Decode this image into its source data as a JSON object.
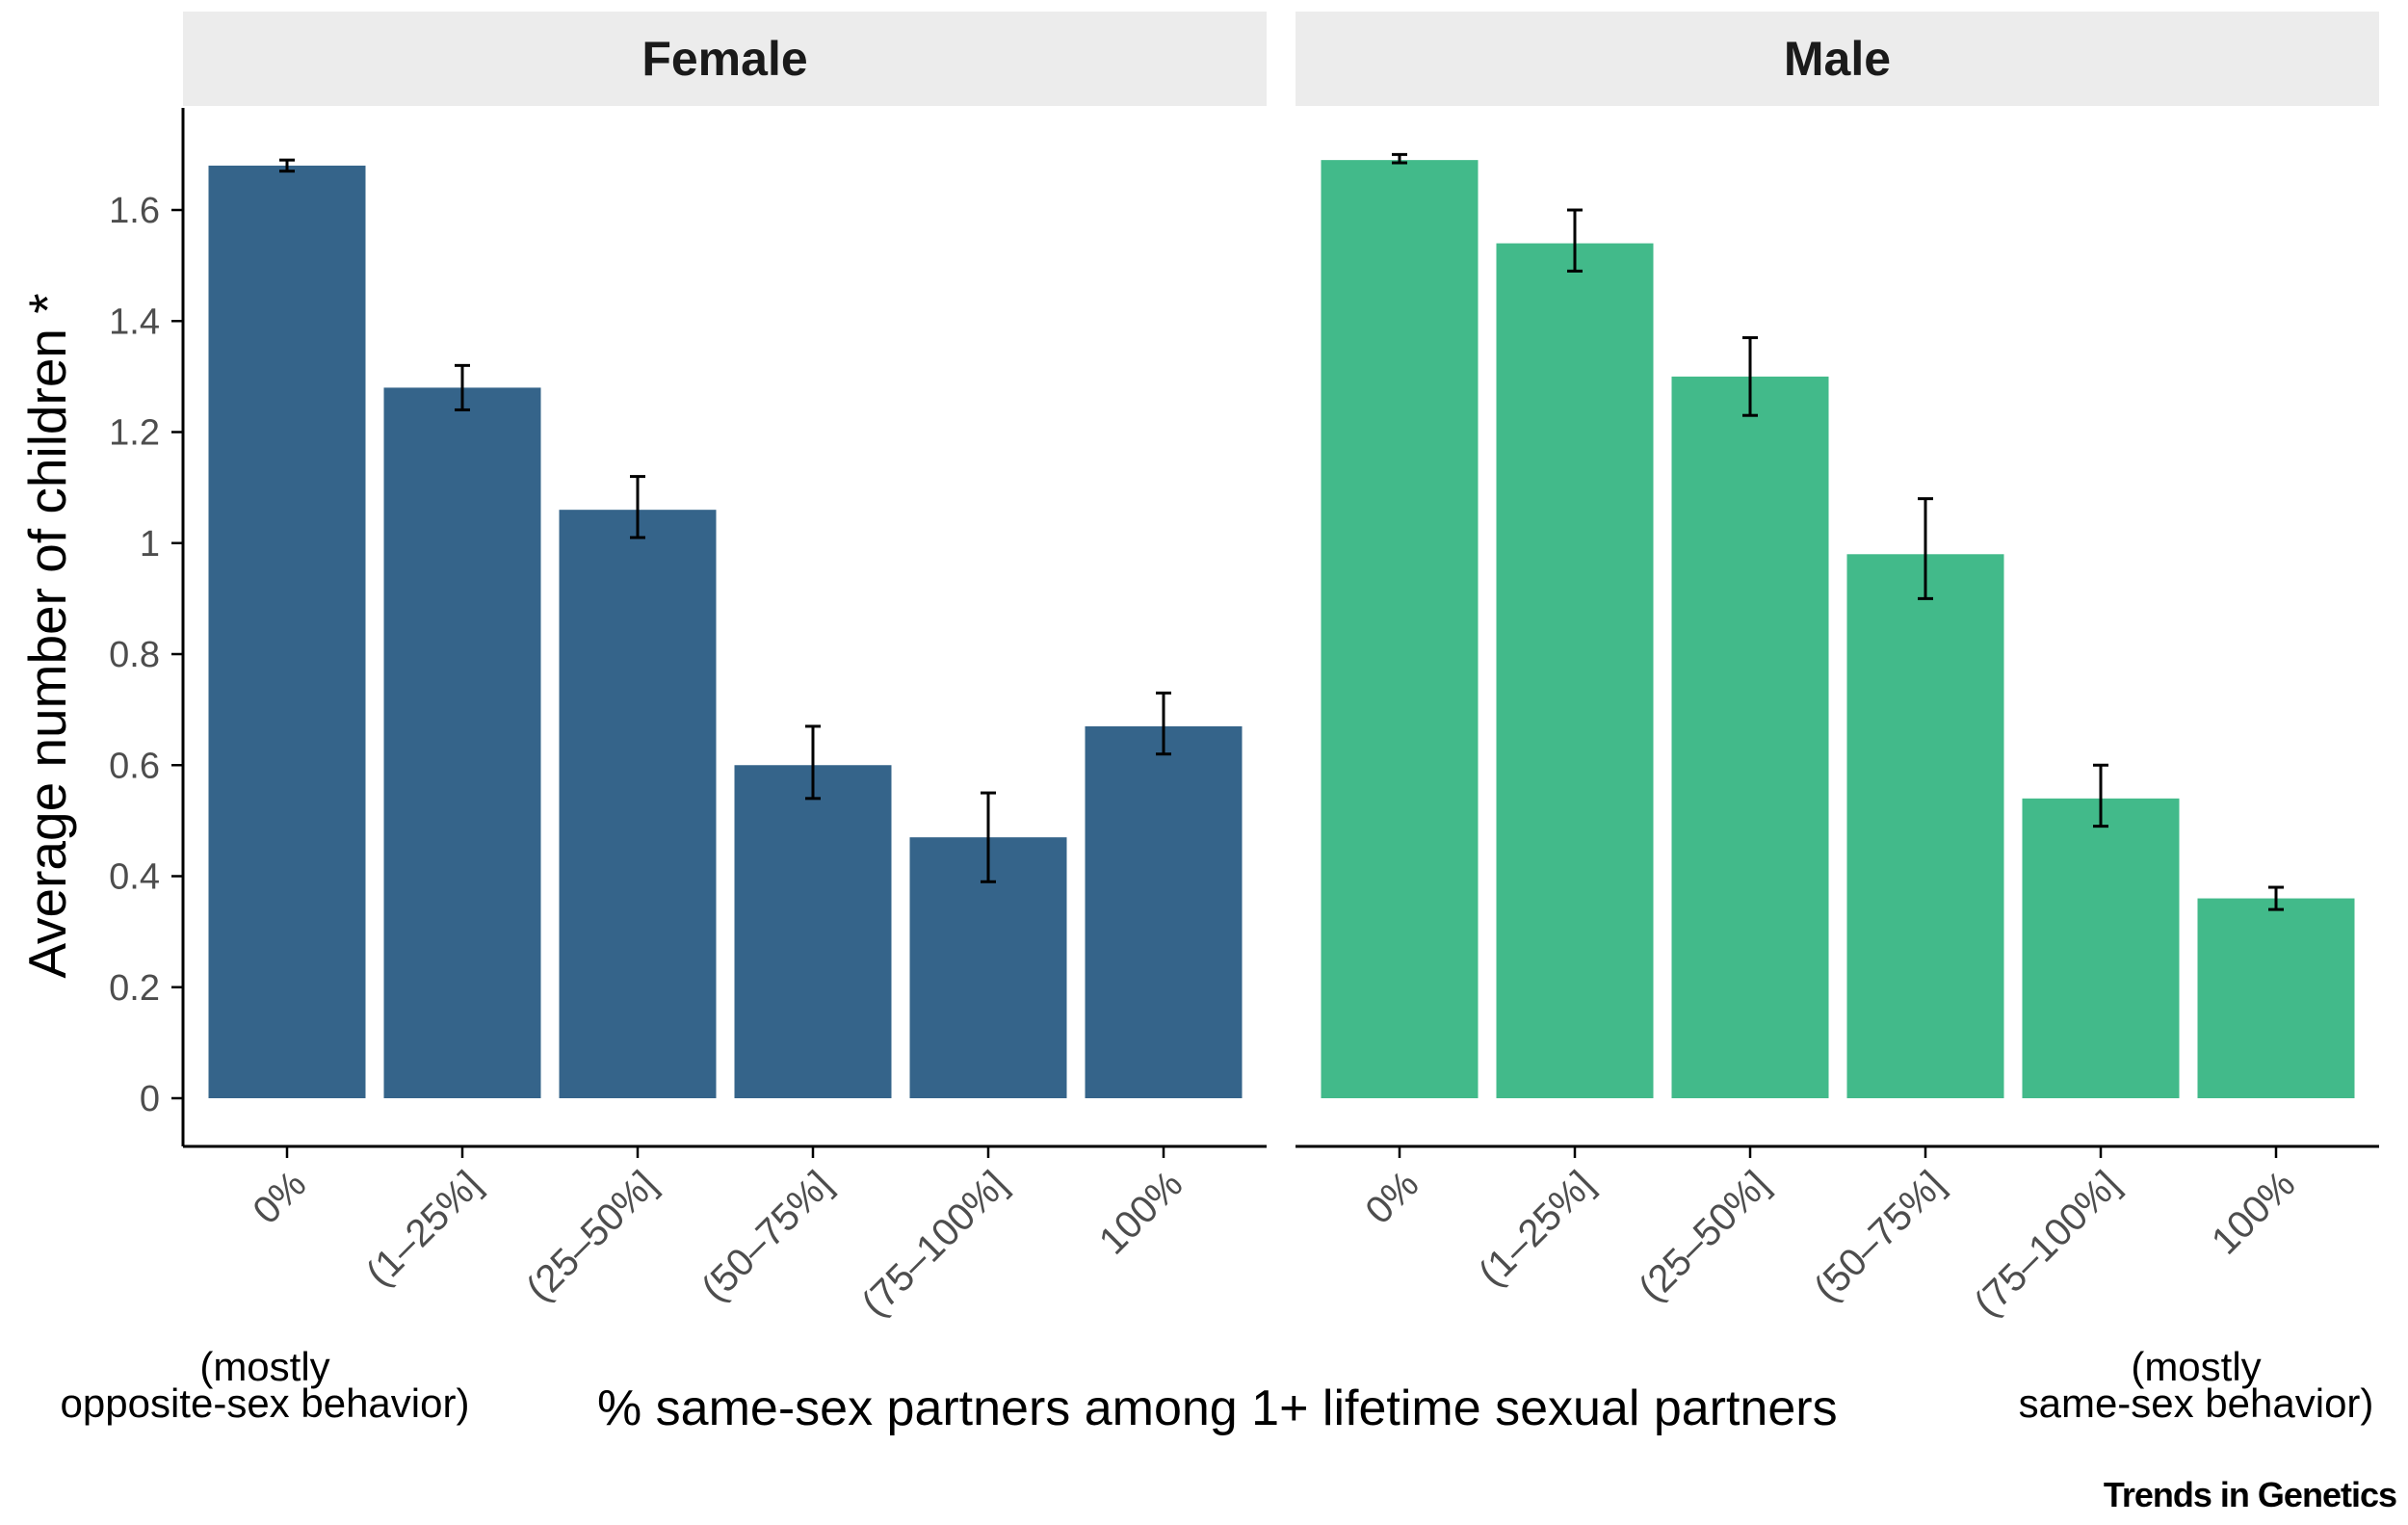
{
  "chart_data": {
    "type": "bar",
    "ylabel": "Average number of children *",
    "xlabel": "% same-sex partners among 1+ lifetime sexual partners",
    "ylim": [
      -0.08,
      1.8
    ],
    "yticks": [
      0,
      0.2,
      0.4,
      0.6,
      0.8,
      1,
      1.2,
      1.4,
      1.6
    ],
    "ytick_labels": [
      "0",
      "0.2",
      "0.4",
      "0.6",
      "0.8",
      "1",
      "1.2",
      "1.4",
      "1.6"
    ],
    "categories": [
      "0%",
      "(1–25%]",
      "(25–50%]",
      "(50–75%]",
      "(75–100%]",
      "100%"
    ],
    "grid": false,
    "legend": "none",
    "facets": [
      {
        "name": "Female",
        "color": "#35648a",
        "values": [
          1.68,
          1.28,
          1.06,
          0.6,
          0.47,
          0.67
        ],
        "error_low": [
          1.67,
          1.24,
          1.01,
          0.54,
          0.39,
          0.62
        ],
        "error_high": [
          1.69,
          1.32,
          1.12,
          0.67,
          0.55,
          0.73
        ]
      },
      {
        "name": "Male",
        "color": "#42ba8a",
        "values": [
          1.69,
          1.54,
          1.3,
          0.98,
          0.54,
          0.36
        ],
        "error_low": [
          1.685,
          1.49,
          1.23,
          0.9,
          0.49,
          0.34
        ],
        "error_high": [
          1.7,
          1.6,
          1.37,
          1.08,
          0.6,
          0.38
        ]
      }
    ]
  },
  "annotations": {
    "left_note_line1": "(mostly",
    "left_note_line2": "opposite-sex behavior)",
    "right_note_line1": "(mostly",
    "right_note_line2": "same-sex behavior)"
  },
  "colors": {
    "strip_background": "#ececec",
    "axis": "#000000",
    "tick_label": "#4d4d4d"
  },
  "credit": "Trends in Genetics"
}
